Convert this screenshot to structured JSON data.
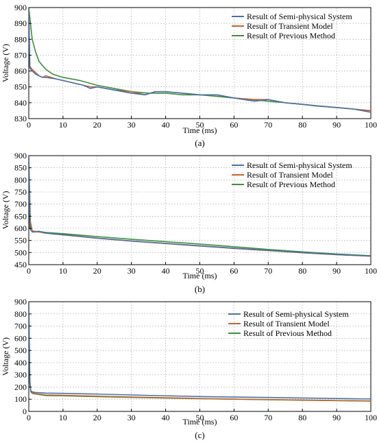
{
  "colors": {
    "semi_physical": "#4a6fa8",
    "transient": "#c0652d",
    "previous": "#3b8f3b",
    "grid": "#b0b0b0"
  },
  "chart_data": [
    {
      "type": "line",
      "panel_label": "(a)",
      "xlabel": "Time (ms)",
      "ylabel": "Voltage (V)",
      "xlim": [
        0,
        100
      ],
      "ylim": [
        830,
        900
      ],
      "xticks": [
        0,
        10,
        20,
        30,
        40,
        50,
        60,
        70,
        80,
        90,
        100
      ],
      "yticks": [
        830,
        840,
        850,
        860,
        870,
        880,
        890,
        900
      ],
      "grid": true,
      "legend_position": "top-right",
      "series": [
        {
          "name": "Result of Semi-physical System",
          "color_key": "semi_physical",
          "x": [
            0,
            0.3,
            1,
            2,
            3,
            4,
            5,
            8,
            12,
            16,
            18,
            20,
            25,
            30,
            34,
            37,
            40,
            45,
            50,
            52,
            55,
            60,
            66,
            70,
            75,
            80,
            84,
            90,
            95,
            100
          ],
          "y": [
            900,
            862,
            860,
            858,
            857,
            856,
            856,
            855,
            853,
            851,
            849,
            850,
            848,
            846,
            845,
            847,
            847,
            846,
            845,
            845,
            845,
            843,
            841,
            842,
            840,
            839,
            838,
            837,
            836,
            834
          ]
        },
        {
          "name": "Result of Transient Model",
          "color_key": "transient",
          "x": [
            0,
            0.3,
            1,
            2,
            3,
            4,
            5,
            8,
            12,
            16,
            18,
            20,
            25,
            30,
            34,
            37,
            40,
            45,
            50,
            52,
            55,
            60,
            66,
            70,
            75,
            80,
            84,
            90,
            95,
            100
          ],
          "y": [
            900,
            863,
            861,
            859,
            857,
            856,
            857,
            855,
            853,
            851,
            850,
            850,
            848,
            847,
            845,
            847,
            847,
            846,
            845,
            845,
            845,
            843,
            842,
            842,
            840,
            839,
            838,
            837,
            836,
            835
          ]
        },
        {
          "name": "Result of Previous Method",
          "color_key": "previous",
          "x": [
            0,
            0.5,
            1,
            2,
            3,
            5,
            7,
            10,
            15,
            20,
            25,
            30,
            35,
            40,
            45,
            50,
            55,
            60,
            65,
            70,
            75,
            80,
            85,
            90,
            95,
            100
          ],
          "y": [
            900,
            890,
            880,
            872,
            866,
            861,
            858,
            856,
            854,
            851,
            849,
            847,
            846,
            846,
            845,
            845,
            844,
            843,
            842,
            841,
            840,
            839,
            838,
            837,
            836,
            835
          ]
        }
      ]
    },
    {
      "type": "line",
      "panel_label": "(b)",
      "xlabel": "Time (ms)",
      "ylabel": "Voltage (V)",
      "xlim": [
        0,
        100
      ],
      "ylim": [
        450,
        900
      ],
      "xticks": [
        0,
        10,
        20,
        30,
        40,
        50,
        60,
        70,
        80,
        90,
        100
      ],
      "yticks": [
        450,
        500,
        550,
        600,
        650,
        700,
        750,
        800,
        850,
        900
      ],
      "grid": true,
      "legend_position": "top-right",
      "series": [
        {
          "name": "Result of Semi-physical System",
          "color_key": "semi_physical",
          "x": [
            0,
            0.3,
            1,
            2,
            3,
            5,
            10,
            20,
            30,
            40,
            50,
            60,
            70,
            80,
            90,
            100
          ],
          "y": [
            900,
            600,
            585,
            585,
            588,
            580,
            574,
            560,
            548,
            538,
            528,
            518,
            509,
            500,
            492,
            485
          ]
        },
        {
          "name": "Result of Transient Model",
          "color_key": "transient",
          "x": [
            0,
            0.3,
            1,
            2,
            3,
            5,
            10,
            20,
            30,
            40,
            50,
            60,
            70,
            80,
            90,
            100
          ],
          "y": [
            900,
            640,
            590,
            586,
            585,
            580,
            573,
            559,
            547,
            537,
            527,
            517,
            508,
            499,
            491,
            485
          ]
        },
        {
          "name": "Result of Previous Method",
          "color_key": "previous",
          "x": [
            0,
            0.5,
            1,
            2,
            3,
            5,
            10,
            20,
            30,
            40,
            50,
            60,
            70,
            80,
            90,
            100
          ],
          "y": [
            900,
            600,
            588,
            587,
            587,
            583,
            578,
            566,
            555,
            545,
            535,
            524,
            513,
            503,
            494,
            487
          ]
        }
      ]
    },
    {
      "type": "line",
      "panel_label": "(c)",
      "xlabel": "Time (ms)",
      "ylabel": "Voltage (V)",
      "xlim": [
        0,
        100
      ],
      "ylim": [
        0,
        900
      ],
      "xticks": [
        0,
        10,
        20,
        30,
        40,
        50,
        60,
        70,
        80,
        90,
        100
      ],
      "yticks": [
        0,
        100,
        200,
        300,
        400,
        500,
        600,
        700,
        800,
        900
      ],
      "grid": true,
      "legend_position": "top-right",
      "series": [
        {
          "name": "Result of Semi-physical System",
          "color_key": "semi_physical",
          "x": [
            0,
            0.3,
            0.6,
            1,
            2,
            5,
            10,
            20,
            30,
            40,
            50,
            60,
            70,
            80,
            90,
            100
          ],
          "y": [
            900,
            250,
            170,
            160,
            155,
            150,
            148,
            142,
            135,
            128,
            122,
            118,
            114,
            110,
            106,
            102
          ]
        },
        {
          "name": "Result of Transient Model",
          "color_key": "transient",
          "x": [
            0,
            0.3,
            0.6,
            1,
            2,
            5,
            10,
            20,
            30,
            40,
            50,
            60,
            70,
            80,
            90,
            100
          ],
          "y": [
            900,
            240,
            165,
            150,
            145,
            135,
            132,
            125,
            118,
            112,
            106,
            101,
            97,
            93,
            89,
            86
          ]
        },
        {
          "name": "Result of Previous Method",
          "color_key": "previous",
          "x": [
            0,
            0.3,
            0.6,
            1,
            2,
            5,
            10,
            20,
            30,
            40,
            50,
            60,
            70,
            80,
            90,
            100
          ],
          "y": [
            900,
            230,
            160,
            148,
            142,
            130,
            128,
            121,
            115,
            109,
            104,
            100,
            96,
            92,
            88,
            85
          ]
        }
      ]
    }
  ]
}
